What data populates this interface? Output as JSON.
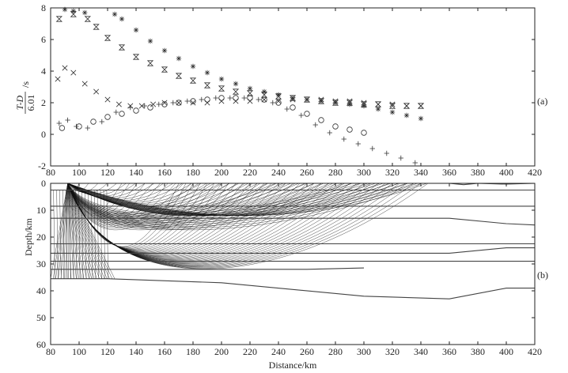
{
  "chart_data": [
    {
      "id": "a",
      "type": "scatter",
      "panel_label": "(a)",
      "ylabel_num": "T-D",
      "ylabel_den": "6.01",
      "ylabel_unit": "/s",
      "xlim": [
        80,
        420
      ],
      "ylim": [
        -2,
        8
      ],
      "xticks": [
        80,
        100,
        120,
        140,
        160,
        180,
        200,
        220,
        240,
        260,
        280,
        300,
        320,
        340,
        360,
        380,
        400,
        420
      ],
      "yticks": [
        -2,
        0,
        2,
        4,
        6,
        8
      ],
      "series": [
        {
          "marker": "star",
          "points": [
            [
              90,
              7.9
            ],
            [
              96,
              7.8
            ],
            [
              104,
              7.7
            ],
            [
              125,
              7.6
            ],
            [
              130,
              7.3
            ],
            [
              140,
              6.6
            ],
            [
              150,
              5.9
            ],
            [
              160,
              5.3
            ],
            [
              170,
              4.8
            ],
            [
              180,
              4.3
            ],
            [
              190,
              3.9
            ],
            [
              200,
              3.5
            ],
            [
              210,
              3.2
            ],
            [
              220,
              2.9
            ],
            [
              230,
              2.7
            ],
            [
              240,
              2.5
            ],
            [
              250,
              2.3
            ],
            [
              260,
              2.2
            ],
            [
              270,
              2.1
            ],
            [
              280,
              2.0
            ],
            [
              290,
              1.9
            ],
            [
              300,
              1.8
            ],
            [
              310,
              1.6
            ],
            [
              320,
              1.4
            ],
            [
              330,
              1.2
            ],
            [
              340,
              1.0
            ]
          ]
        },
        {
          "marker": "hourglass",
          "points": [
            [
              86,
              7.3
            ],
            [
              96,
              7.6
            ],
            [
              106,
              7.3
            ],
            [
              112,
              6.8
            ],
            [
              120,
              6.1
            ],
            [
              130,
              5.5
            ],
            [
              140,
              4.9
            ],
            [
              150,
              4.5
            ],
            [
              160,
              4.1
            ],
            [
              170,
              3.7
            ],
            [
              180,
              3.4
            ],
            [
              190,
              3.1
            ],
            [
              200,
              2.9
            ],
            [
              210,
              2.7
            ],
            [
              220,
              2.6
            ],
            [
              230,
              2.5
            ],
            [
              240,
              2.4
            ],
            [
              250,
              2.3
            ],
            [
              260,
              2.2
            ],
            [
              270,
              2.1
            ],
            [
              280,
              2.0
            ],
            [
              290,
              2.0
            ],
            [
              300,
              1.9
            ],
            [
              310,
              1.9
            ],
            [
              320,
              1.8
            ],
            [
              330,
              1.8
            ],
            [
              340,
              1.8
            ]
          ]
        },
        {
          "marker": "x",
          "points": [
            [
              85,
              3.5
            ],
            [
              90,
              4.2
            ],
            [
              96,
              3.9
            ],
            [
              104,
              3.2
            ],
            [
              112,
              2.7
            ],
            [
              120,
              2.2
            ],
            [
              128,
              1.9
            ],
            [
              136,
              1.8
            ],
            [
              144,
              1.8
            ],
            [
              152,
              1.9
            ],
            [
              160,
              2.0
            ],
            [
              170,
              2.0
            ],
            [
              180,
              2.0
            ],
            [
              190,
              2.0
            ],
            [
              200,
              2.1
            ],
            [
              210,
              2.1
            ],
            [
              220,
              2.1
            ],
            [
              230,
              2.2
            ],
            [
              240,
              2.1
            ],
            [
              250,
              2.2
            ],
            [
              260,
              2.2
            ],
            [
              270,
              2.2
            ],
            [
              280,
              2.1
            ],
            [
              290,
              2.1
            ],
            [
              300,
              2.0
            ],
            [
              310,
              1.9
            ],
            [
              320,
              1.9
            ],
            [
              330,
              1.8
            ],
            [
              340,
              1.8
            ]
          ]
        },
        {
          "marker": "circle",
          "points": [
            [
              88,
              0.4
            ],
            [
              100,
              0.5
            ],
            [
              110,
              0.8
            ],
            [
              120,
              1.1
            ],
            [
              130,
              1.3
            ],
            [
              140,
              1.5
            ],
            [
              150,
              1.7
            ],
            [
              160,
              1.9
            ],
            [
              170,
              2.0
            ],
            [
              180,
              2.1
            ],
            [
              190,
              2.2
            ],
            [
              200,
              2.3
            ],
            [
              210,
              2.3
            ],
            [
              220,
              2.3
            ],
            [
              230,
              2.2
            ],
            [
              240,
              2.0
            ],
            [
              250,
              1.7
            ],
            [
              260,
              1.3
            ],
            [
              270,
              0.9
            ],
            [
              280,
              0.5
            ],
            [
              290,
              0.3
            ],
            [
              300,
              0.1
            ]
          ]
        },
        {
          "marker": "plus",
          "points": [
            [
              86,
              0.7
            ],
            [
              92,
              0.9
            ],
            [
              98,
              0.5
            ],
            [
              106,
              0.4
            ],
            [
              116,
              0.8
            ],
            [
              126,
              1.4
            ],
            [
              136,
              1.7
            ],
            [
              146,
              1.8
            ],
            [
              156,
              1.9
            ],
            [
              166,
              2.0
            ],
            [
              176,
              2.1
            ],
            [
              186,
              2.2
            ],
            [
              196,
              2.3
            ],
            [
              206,
              2.3
            ],
            [
              216,
              2.3
            ],
            [
              226,
              2.2
            ],
            [
              236,
              2.0
            ],
            [
              246,
              1.6
            ],
            [
              256,
              1.2
            ],
            [
              266,
              0.6
            ],
            [
              276,
              0.1
            ],
            [
              286,
              -0.3
            ],
            [
              296,
              -0.6
            ],
            [
              306,
              -0.9
            ],
            [
              316,
              -1.2
            ],
            [
              326,
              -1.5
            ],
            [
              336,
              -1.8
            ]
          ]
        }
      ]
    },
    {
      "id": "b",
      "type": "line",
      "panel_label": "(b)",
      "xlabel": "Distance/km",
      "ylabel": "Depth/km",
      "xlim": [
        80,
        420
      ],
      "ylim": [
        0,
        60
      ],
      "y_inverted": true,
      "xticks": [
        80,
        100,
        120,
        140,
        160,
        180,
        200,
        220,
        240,
        260,
        280,
        300,
        320,
        340,
        360,
        380,
        400,
        420
      ],
      "yticks": [
        0,
        10,
        20,
        30,
        40,
        50,
        60
      ],
      "source_x": 92,
      "interfaces": [
        {
          "name": "surface",
          "points": [
            [
              80,
              0
            ],
            [
              360,
              0
            ],
            [
              370,
              0.5
            ],
            [
              380,
              0
            ],
            [
              400,
              0.3
            ],
            [
              420,
              0
            ]
          ]
        },
        {
          "name": "layer-1",
          "points": [
            [
              80,
              2.5
            ],
            [
              420,
              2.5
            ]
          ]
        },
        {
          "name": "layer-2",
          "points": [
            [
              80,
              8.5
            ],
            [
              420,
              8.5
            ]
          ]
        },
        {
          "name": "layer-3",
          "points": [
            [
              80,
              13
            ],
            [
              360,
              13
            ],
            [
              400,
              15
            ],
            [
              420,
              15.5
            ]
          ]
        },
        {
          "name": "layer-4",
          "points": [
            [
              80,
              22.5
            ],
            [
              420,
              22.5
            ]
          ]
        },
        {
          "name": "layer-5",
          "points": [
            [
              80,
              26
            ],
            [
              360,
              26
            ],
            [
              400,
              24
            ],
            [
              420,
              24
            ]
          ]
        },
        {
          "name": "layer-6",
          "points": [
            [
              80,
              29
            ],
            [
              420,
              29
            ]
          ]
        },
        {
          "name": "layer-7",
          "points": [
            [
              80,
              32
            ],
            [
              200,
              32
            ],
            [
              260,
              32
            ],
            [
              300,
              31.5
            ]
          ]
        },
        {
          "name": "moho",
          "points": [
            [
              80,
              35.5
            ],
            [
              120,
              35.5
            ],
            [
              200,
              37
            ],
            [
              300,
              42
            ],
            [
              360,
              43
            ],
            [
              400,
              39
            ],
            [
              420,
              39
            ]
          ]
        }
      ]
    }
  ]
}
